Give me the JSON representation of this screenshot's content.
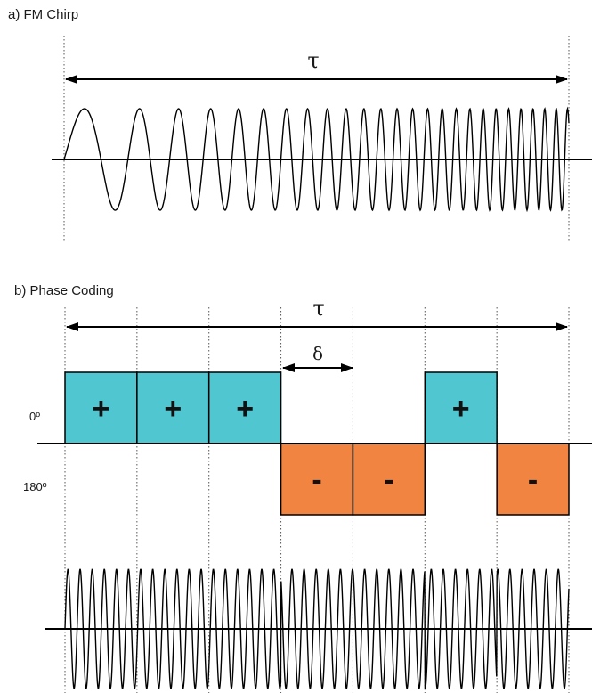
{
  "fm_chirp": {
    "title": "a) FM Chirp",
    "duration_label": "τ"
  },
  "phase_coding": {
    "title": "b) Phase Coding",
    "duration_label": "τ",
    "chip_label": "δ",
    "level_labels": {
      "top": "0º",
      "bottom": "180º"
    },
    "code": [
      "+",
      "+",
      "+",
      "-",
      "-",
      "+",
      "-"
    ],
    "positive_color": "#4fc6d0",
    "negative_color": "#f28441"
  }
}
